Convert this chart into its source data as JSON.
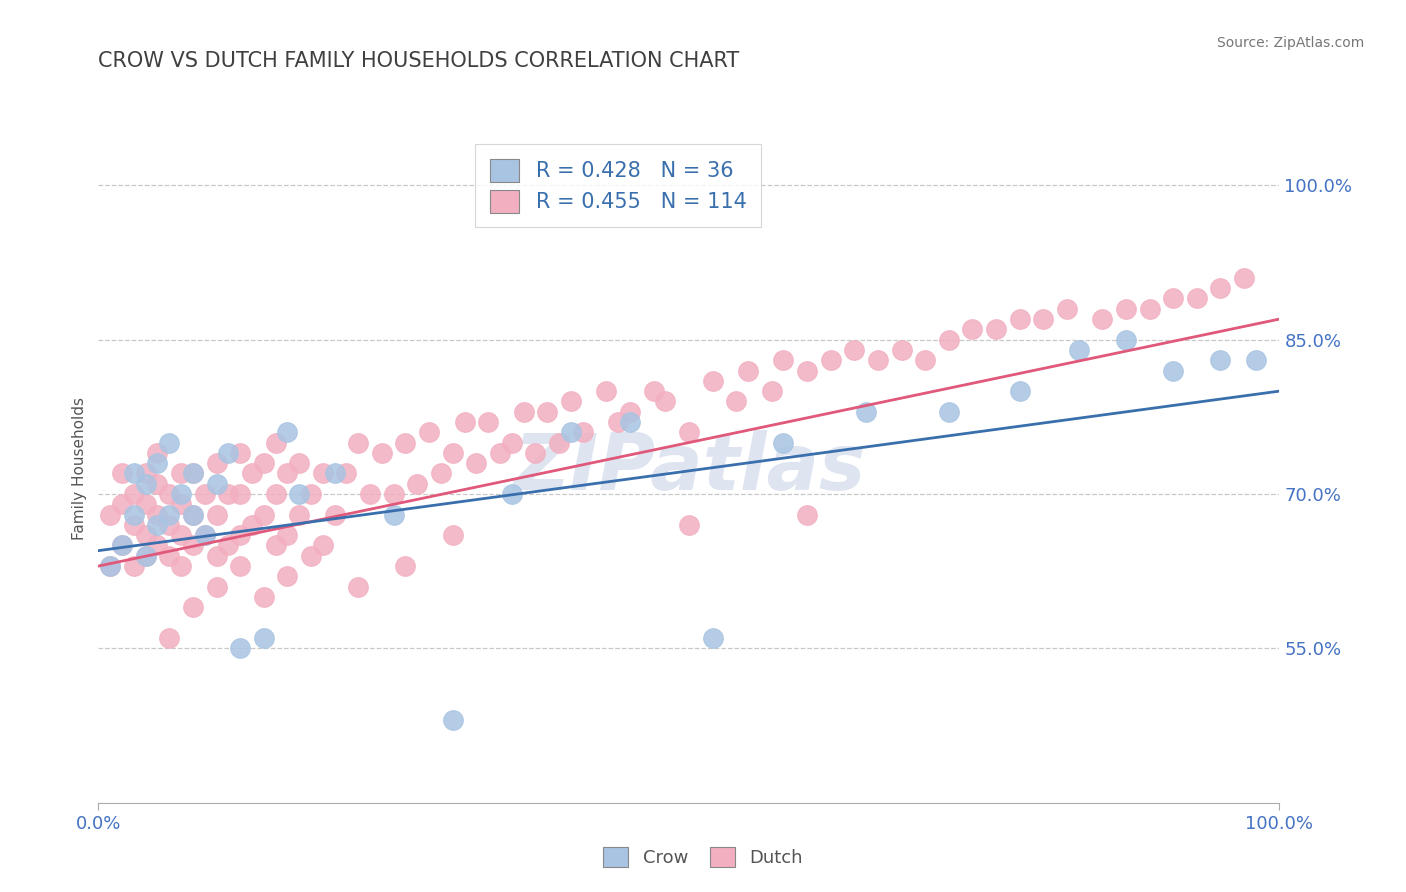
{
  "title": "CROW VS DUTCH FAMILY HOUSEHOLDS CORRELATION CHART",
  "source_text": "Source: ZipAtlas.com",
  "ylabel": "Family Households",
  "watermark": "ZIPatlas",
  "crow_color": "#a8c4e2",
  "dutch_color": "#f2afc0",
  "crow_line_color": "#3a6fad",
  "dutch_line_color": "#e0587a",
  "xlim": [
    0.0,
    1.0
  ],
  "ylim": [
    0.4,
    1.05
  ],
  "yticks": [
    0.55,
    0.7,
    0.85,
    1.0
  ],
  "ytick_labels": [
    "55.0%",
    "70.0%",
    "85.0%",
    "100.0%"
  ],
  "xtick_labels": [
    "0.0%",
    "100.0%"
  ],
  "xticks": [
    0.0,
    1.0
  ],
  "title_fontsize": 15,
  "axis_label_fontsize": 11,
  "tick_fontsize": 13,
  "background_color": "#ffffff",
  "crow_R": 0.428,
  "crow_N": 36,
  "dutch_R": 0.455,
  "dutch_N": 114,
  "crow_x": [
    0.01,
    0.02,
    0.03,
    0.03,
    0.04,
    0.04,
    0.05,
    0.05,
    0.06,
    0.06,
    0.07,
    0.08,
    0.08,
    0.09,
    0.1,
    0.11,
    0.12,
    0.14,
    0.16,
    0.17,
    0.2,
    0.25,
    0.3,
    0.35,
    0.4,
    0.45,
    0.52,
    0.58,
    0.65,
    0.72,
    0.78,
    0.83,
    0.87,
    0.91,
    0.95,
    0.98
  ],
  "crow_y": [
    0.63,
    0.65,
    0.68,
    0.72,
    0.64,
    0.71,
    0.67,
    0.73,
    0.68,
    0.75,
    0.7,
    0.72,
    0.68,
    0.66,
    0.71,
    0.74,
    0.55,
    0.56,
    0.76,
    0.7,
    0.72,
    0.68,
    0.48,
    0.7,
    0.76,
    0.77,
    0.56,
    0.75,
    0.78,
    0.78,
    0.8,
    0.84,
    0.85,
    0.82,
    0.83,
    0.83
  ],
  "dutch_x": [
    0.01,
    0.01,
    0.02,
    0.02,
    0.02,
    0.03,
    0.03,
    0.03,
    0.04,
    0.04,
    0.04,
    0.04,
    0.05,
    0.05,
    0.05,
    0.05,
    0.06,
    0.06,
    0.06,
    0.07,
    0.07,
    0.07,
    0.07,
    0.08,
    0.08,
    0.08,
    0.09,
    0.09,
    0.1,
    0.1,
    0.1,
    0.11,
    0.11,
    0.12,
    0.12,
    0.12,
    0.13,
    0.13,
    0.14,
    0.14,
    0.15,
    0.15,
    0.15,
    0.16,
    0.16,
    0.17,
    0.17,
    0.18,
    0.19,
    0.19,
    0.2,
    0.21,
    0.22,
    0.23,
    0.24,
    0.25,
    0.26,
    0.27,
    0.28,
    0.29,
    0.3,
    0.31,
    0.32,
    0.33,
    0.34,
    0.35,
    0.36,
    0.37,
    0.38,
    0.39,
    0.4,
    0.41,
    0.43,
    0.44,
    0.45,
    0.47,
    0.48,
    0.5,
    0.52,
    0.54,
    0.55,
    0.57,
    0.58,
    0.6,
    0.62,
    0.64,
    0.66,
    0.68,
    0.7,
    0.72,
    0.74,
    0.76,
    0.78,
    0.8,
    0.82,
    0.85,
    0.87,
    0.89,
    0.91,
    0.93,
    0.95,
    0.97,
    0.5,
    0.6,
    0.06,
    0.08,
    0.1,
    0.12,
    0.14,
    0.16,
    0.18,
    0.22,
    0.26,
    0.3
  ],
  "dutch_y": [
    0.63,
    0.68,
    0.65,
    0.69,
    0.72,
    0.63,
    0.67,
    0.7,
    0.64,
    0.66,
    0.69,
    0.72,
    0.65,
    0.68,
    0.71,
    0.74,
    0.64,
    0.67,
    0.7,
    0.63,
    0.66,
    0.69,
    0.72,
    0.65,
    0.68,
    0.72,
    0.66,
    0.7,
    0.64,
    0.68,
    0.73,
    0.65,
    0.7,
    0.66,
    0.7,
    0.74,
    0.67,
    0.72,
    0.68,
    0.73,
    0.65,
    0.7,
    0.75,
    0.66,
    0.72,
    0.68,
    0.73,
    0.7,
    0.65,
    0.72,
    0.68,
    0.72,
    0.75,
    0.7,
    0.74,
    0.7,
    0.75,
    0.71,
    0.76,
    0.72,
    0.74,
    0.77,
    0.73,
    0.77,
    0.74,
    0.75,
    0.78,
    0.74,
    0.78,
    0.75,
    0.79,
    0.76,
    0.8,
    0.77,
    0.78,
    0.8,
    0.79,
    0.76,
    0.81,
    0.79,
    0.82,
    0.8,
    0.83,
    0.82,
    0.83,
    0.84,
    0.83,
    0.84,
    0.83,
    0.85,
    0.86,
    0.86,
    0.87,
    0.87,
    0.88,
    0.87,
    0.88,
    0.88,
    0.89,
    0.89,
    0.9,
    0.91,
    0.67,
    0.68,
    0.56,
    0.59,
    0.61,
    0.63,
    0.6,
    0.62,
    0.64,
    0.61,
    0.63,
    0.66
  ]
}
